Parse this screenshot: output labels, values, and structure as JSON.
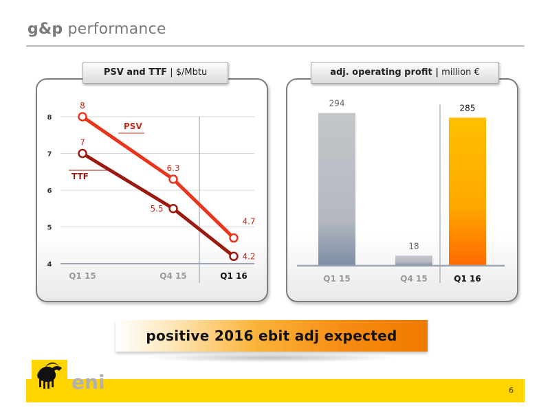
{
  "title": {
    "bold": "g&p",
    "rest": "performance"
  },
  "left_panel": {
    "header_bold": "PSV and TTF",
    "header_rest": "| $/Mbtu"
  },
  "right_panel": {
    "header_bold": "adj. operating profit |",
    "header_rest": "million €"
  },
  "chart_data": [
    {
      "type": "line",
      "categories": [
        "Q1 15",
        "Q4 15",
        "Q1 16"
      ],
      "highlight_category": "Q1 16",
      "ylim": [
        4,
        8
      ],
      "yticks": [
        4,
        5,
        6,
        7,
        8
      ],
      "grid": true,
      "series": [
        {
          "name": "PSV",
          "values": [
            8,
            6.3,
            4.7
          ],
          "labels": [
            "8",
            "6.3",
            "4.7"
          ],
          "color": "#e8361c"
        },
        {
          "name": "TTF",
          "values": [
            7,
            5.5,
            4.2
          ],
          "labels": [
            "7",
            "5.5",
            "4.2"
          ],
          "color": "#9b1a10"
        }
      ]
    },
    {
      "type": "bar",
      "categories": [
        "Q1 15",
        "Q4 15",
        "Q1 16"
      ],
      "highlight_category": "Q1 16",
      "values": [
        294,
        18,
        285
      ],
      "labels": [
        "294",
        "18",
        "285"
      ],
      "colors": [
        "#b8bcc2",
        "#b8bcc2",
        "#ffb000"
      ],
      "ylim": [
        0,
        300
      ]
    }
  ],
  "banner": {
    "text": "positive 2016 ebit adj expected"
  },
  "footer": {
    "page_number": "6",
    "logo_text": "eni"
  }
}
